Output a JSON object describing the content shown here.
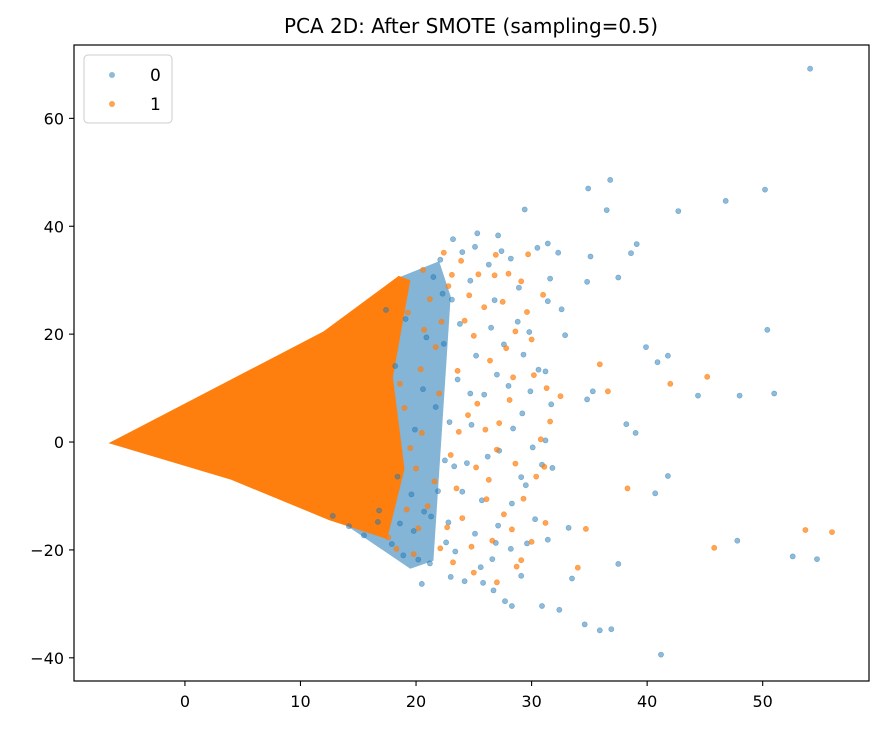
{
  "chart_data": {
    "type": "scatter",
    "title": "PCA 2D: After SMOTE (sampling=0.5)",
    "xlabel": "",
    "ylabel": "",
    "xlim": [
      -9.6,
      59.2
    ],
    "ylim": [
      -44.3,
      73.6
    ],
    "xticks": [
      0,
      10,
      20,
      30,
      40,
      50
    ],
    "yticks": [
      -40,
      -20,
      0,
      20,
      40,
      60
    ],
    "grid": false,
    "legend_position": "upper-left",
    "series": [
      {
        "name": "0",
        "color": "#1f77b4",
        "alpha": 0.5,
        "points": [
          [
            54.1,
            69.2
          ],
          [
            36.8,
            48.6
          ],
          [
            34.9,
            47.0
          ],
          [
            50.2,
            46.8
          ],
          [
            46.8,
            44.7
          ],
          [
            29.4,
            43.1
          ],
          [
            36.5,
            43.0
          ],
          [
            42.7,
            42.8
          ],
          [
            39.1,
            36.7
          ],
          [
            38.6,
            35.0
          ],
          [
            35.1,
            34.4
          ],
          [
            37.5,
            30.5
          ],
          [
            34.8,
            29.7
          ],
          [
            50.4,
            20.8
          ],
          [
            39.9,
            17.6
          ],
          [
            41.8,
            16.0
          ],
          [
            40.9,
            14.8
          ],
          [
            31.2,
            13.1
          ],
          [
            51.0,
            9.0
          ],
          [
            44.4,
            8.6
          ],
          [
            48.0,
            8.6
          ],
          [
            35.3,
            9.4
          ],
          [
            34.8,
            7.9
          ],
          [
            38.2,
            3.3
          ],
          [
            39.0,
            1.7
          ],
          [
            40.7,
            -9.5
          ],
          [
            41.8,
            -6.3
          ],
          [
            47.8,
            -18.3
          ],
          [
            52.6,
            -21.2
          ],
          [
            54.7,
            -21.7
          ],
          [
            37.5,
            -22.6
          ],
          [
            41.2,
            -39.4
          ],
          [
            35.9,
            -34.9
          ],
          [
            36.9,
            -34.7
          ],
          [
            32.4,
            -31.1
          ],
          [
            34.6,
            -33.8
          ],
          [
            30.9,
            -30.4
          ],
          [
            33.5,
            -25.3
          ],
          [
            29.1,
            -24.8
          ],
          [
            31.4,
            -18.1
          ],
          [
            33.2,
            -15.9
          ],
          [
            30.9,
            -4.2
          ],
          [
            31.8,
            -4.8
          ],
          [
            31.2,
            0.3
          ],
          [
            31.7,
            7.0
          ],
          [
            32.9,
            19.8
          ],
          [
            32.6,
            24.6
          ],
          [
            31.4,
            26.1
          ],
          [
            31.6,
            30.3
          ],
          [
            30.5,
            36.0
          ],
          [
            31.4,
            36.8
          ],
          [
            32.3,
            35.1
          ],
          [
            28.2,
            34.0
          ],
          [
            27.1,
            38.3
          ],
          [
            25.3,
            38.7
          ],
          [
            25.1,
            36.2
          ],
          [
            24.0,
            35.2
          ],
          [
            23.2,
            37.6
          ],
          [
            26.8,
            26.3
          ],
          [
            28.8,
            22.3
          ],
          [
            27.6,
            18.1
          ],
          [
            29.3,
            16.2
          ],
          [
            28.0,
            10.4
          ],
          [
            29.9,
            9.4
          ],
          [
            28.4,
            2.5
          ],
          [
            27.2,
            -1.6
          ],
          [
            29.1,
            -6.5
          ],
          [
            28.3,
            -11.4
          ],
          [
            27.1,
            -15.5
          ],
          [
            28.2,
            -19.8
          ],
          [
            26.6,
            -21.7
          ],
          [
            26.7,
            -27.5
          ],
          [
            27.7,
            -29.5
          ],
          [
            28.3,
            -30.4
          ],
          [
            25.8,
            -26.1
          ],
          [
            24.2,
            -25.8
          ],
          [
            23.4,
            -20.3
          ],
          [
            25.1,
            -17.0
          ],
          [
            24.0,
            -9.2
          ],
          [
            23.3,
            -4.5
          ],
          [
            24.8,
            3.2
          ],
          [
            23.6,
            11.6
          ],
          [
            25.2,
            16.0
          ],
          [
            23.8,
            21.9
          ],
          [
            22.3,
            27.5
          ],
          [
            21.5,
            30.6
          ],
          [
            22.1,
            33.8
          ],
          [
            20.9,
            19.4
          ],
          [
            21.7,
            6.5
          ],
          [
            22.5,
            -3.4
          ],
          [
            21.3,
            -13.8
          ],
          [
            22.6,
            -18.6
          ],
          [
            21.2,
            -22.5
          ],
          [
            20.5,
            -26.3
          ],
          [
            19.8,
            -16.5
          ],
          [
            19.6,
            -9.7
          ],
          [
            18.4,
            -6.4
          ],
          [
            19.9,
            2.3
          ],
          [
            20.6,
            9.8
          ],
          [
            18.2,
            14.1
          ],
          [
            19.1,
            22.8
          ],
          [
            17.4,
            24.5
          ],
          [
            16.7,
            -14.8
          ],
          [
            17.9,
            -18.9
          ],
          [
            18.9,
            -21.0
          ],
          [
            20.2,
            -21.8
          ],
          [
            25.6,
            -23.2
          ],
          [
            26.9,
            -18.7
          ],
          [
            25.7,
            -10.8
          ],
          [
            26.2,
            -2.7
          ],
          [
            25.9,
            8.8
          ],
          [
            27.0,
            12.5
          ],
          [
            26.5,
            21.2
          ],
          [
            24.7,
            29.9
          ],
          [
            29.6,
            -18.8
          ],
          [
            30.3,
            -14.3
          ],
          [
            29.5,
            -8.0
          ],
          [
            30.1,
            -1.0
          ],
          [
            29.2,
            5.3
          ],
          [
            30.6,
            13.4
          ],
          [
            29.8,
            20.4
          ],
          [
            28.9,
            28.6
          ],
          [
            23.0,
            -25.0
          ],
          [
            22.8,
            -14.9
          ],
          [
            24.4,
            -3.9
          ],
          [
            22.9,
            3.7
          ],
          [
            24.7,
            9.0
          ],
          [
            22.4,
            18.2
          ],
          [
            23.1,
            26.4
          ],
          [
            26.3,
            32.9
          ],
          [
            27.4,
            35.4
          ],
          [
            15.5,
            -17.3
          ],
          [
            14.2,
            -15.6
          ],
          [
            12.8,
            -13.7
          ],
          [
            16.8,
            -12.7
          ],
          [
            18.6,
            -15.1
          ],
          [
            20.7,
            -12.9
          ],
          [
            21.9,
            -9.1
          ]
        ]
      },
      {
        "name": "1",
        "color": "#ff7f0e",
        "alpha": 0.7,
        "points": [
          [
            56.0,
            -16.7
          ],
          [
            53.7,
            -16.3
          ],
          [
            45.2,
            12.1
          ],
          [
            42.0,
            10.8
          ],
          [
            38.3,
            -8.6
          ],
          [
            45.8,
            -19.6
          ],
          [
            35.9,
            14.4
          ],
          [
            34.7,
            -16.1
          ],
          [
            36.6,
            9.4
          ],
          [
            34.0,
            -23.3
          ],
          [
            30.8,
            0.5
          ],
          [
            31.1,
            -4.6
          ],
          [
            32.5,
            8.5
          ],
          [
            30.2,
            12.4
          ],
          [
            30.0,
            19.0
          ],
          [
            29.6,
            24.1
          ],
          [
            31.0,
            27.3
          ],
          [
            29.7,
            34.8
          ],
          [
            28.0,
            31.2
          ],
          [
            26.8,
            30.9
          ],
          [
            25.4,
            31.1
          ],
          [
            23.9,
            33.6
          ],
          [
            22.4,
            35.1
          ],
          [
            24.6,
            27.2
          ],
          [
            27.5,
            26.0
          ],
          [
            28.6,
            20.5
          ],
          [
            26.4,
            15.1
          ],
          [
            28.1,
            7.8
          ],
          [
            27.0,
            -1.4
          ],
          [
            26.3,
            -7.0
          ],
          [
            27.6,
            -13.4
          ],
          [
            29.1,
            -21.9
          ],
          [
            27.0,
            -26.0
          ],
          [
            28.7,
            -23.1
          ],
          [
            25.0,
            -24.2
          ],
          [
            23.2,
            -22.3
          ],
          [
            24.0,
            -14.1
          ],
          [
            25.2,
            -4.7
          ],
          [
            23.7,
            1.9
          ],
          [
            25.3,
            7.1
          ],
          [
            23.6,
            13.2
          ],
          [
            25.0,
            19.7
          ],
          [
            22.2,
            22.3
          ],
          [
            21.2,
            26.5
          ],
          [
            20.6,
            31.9
          ],
          [
            21.7,
            17.6
          ],
          [
            22.0,
            9.0
          ],
          [
            20.5,
            1.7
          ],
          [
            21.6,
            -7.3
          ],
          [
            20.2,
            -16.0
          ],
          [
            22.1,
            -19.7
          ],
          [
            19.8,
            -20.8
          ],
          [
            18.3,
            -19.8
          ],
          [
            17.6,
            -17.7
          ],
          [
            19.2,
            -12.5
          ],
          [
            20.0,
            -4.9
          ],
          [
            19.0,
            6.3
          ],
          [
            20.4,
            13.5
          ],
          [
            19.3,
            24.0
          ],
          [
            18.5,
            29.1
          ],
          [
            17.8,
            27.6
          ],
          [
            24.8,
            -19.4
          ],
          [
            26.1,
            -10.6
          ],
          [
            23.0,
            -2.4
          ],
          [
            26.0,
            2.3
          ],
          [
            24.2,
            22.5
          ],
          [
            28.4,
            12.0
          ],
          [
            27.2,
            3.5
          ],
          [
            28.6,
            -4.0
          ],
          [
            29.3,
            -10.5
          ],
          [
            30.0,
            -18.5
          ],
          [
            31.2,
            -15.0
          ],
          [
            31.6,
            3.8
          ],
          [
            29.1,
            29.8
          ],
          [
            26.9,
            34.7
          ],
          [
            22.8,
            28.9
          ],
          [
            21.0,
            -11.9
          ],
          [
            22.7,
            -15.8
          ],
          [
            19.5,
            -1.1
          ],
          [
            18.6,
            10.8
          ],
          [
            20.7,
            20.8
          ],
          [
            23.5,
            -8.6
          ],
          [
            24.5,
            5.0
          ],
          [
            26.6,
            -18.3
          ],
          [
            28.3,
            -16.2
          ],
          [
            30.4,
            -6.4
          ],
          [
            31.3,
            10.0
          ],
          [
            27.8,
            17.4
          ],
          [
            25.9,
            25.0
          ],
          [
            23.1,
            31.0
          ]
        ]
      }
    ]
  }
}
